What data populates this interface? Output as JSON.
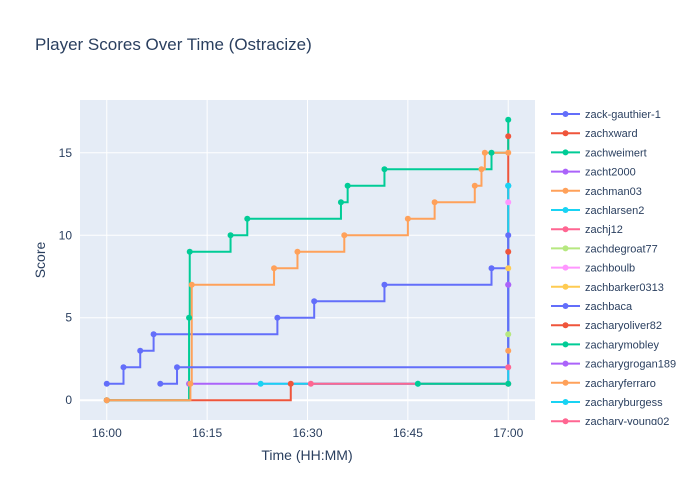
{
  "chart_data": {
    "type": "line",
    "title": "Player Scores Over Time (Ostracize)",
    "xlabel": "Time (HH:MM)",
    "ylabel": "Score",
    "x_tick_labels": [
      "16:00",
      "16:15",
      "16:30",
      "16:45",
      "17:00"
    ],
    "x_tick_minutes": [
      0,
      15,
      30,
      45,
      60
    ],
    "y_ticks": [
      0,
      5,
      10,
      15
    ],
    "xlim_minutes": [
      -4,
      4
    ],
    "ylim": [
      -1.2,
      18.2
    ],
    "line_shape": "step-after",
    "legend_position": "right",
    "grid": true,
    "series": [
      {
        "name": "zack-gauthier-1",
        "color": "#636efa",
        "points": [
          [
            0,
            1
          ],
          [
            2.5,
            2
          ],
          [
            5,
            3
          ],
          [
            7,
            4
          ],
          [
            25.5,
            5
          ],
          [
            31,
            6
          ],
          [
            41.5,
            7
          ],
          [
            57.5,
            8
          ],
          [
            60,
            13
          ]
        ]
      },
      {
        "name": "zachxward",
        "color": "#ef553b",
        "points": [
          [
            0,
            0
          ],
          [
            27.5,
            1
          ],
          [
            60,
            16
          ]
        ]
      },
      {
        "name": "zachweimert",
        "color": "#00cc96",
        "points": [
          [
            0,
            0
          ],
          [
            12.3,
            5
          ],
          [
            12.4,
            9
          ],
          [
            18.5,
            10
          ],
          [
            21,
            11
          ],
          [
            35,
            12
          ],
          [
            36,
            13
          ],
          [
            41.5,
            14
          ],
          [
            57.5,
            15
          ],
          [
            60,
            17
          ]
        ]
      },
      {
        "name": "zacht2000",
        "color": "#ab63fa",
        "points": [
          [
            12.3,
            1
          ],
          [
            60,
            7
          ]
        ]
      },
      {
        "name": "zachman03",
        "color": "#ffa15a",
        "points": [
          [
            0,
            0
          ],
          [
            12.5,
            1
          ],
          [
            12.7,
            7
          ],
          [
            25,
            8
          ],
          [
            28.5,
            9
          ],
          [
            35.5,
            10
          ],
          [
            45,
            11
          ],
          [
            49,
            12
          ],
          [
            55,
            13
          ],
          [
            56,
            14
          ],
          [
            56.5,
            15
          ],
          [
            60,
            15
          ]
        ]
      },
      {
        "name": "zachlarsen2",
        "color": "#19d3f3",
        "points": [
          [
            23,
            1
          ],
          [
            46.5,
            1
          ],
          [
            60,
            13
          ]
        ]
      },
      {
        "name": "zachj12",
        "color": "#ff6692",
        "points": [
          [
            30.5,
            1
          ],
          [
            60,
            1
          ]
        ]
      },
      {
        "name": "zachdegroat77",
        "color": "#b6e880",
        "points": [
          [
            60,
            4
          ]
        ]
      },
      {
        "name": "zachboulb",
        "color": "#ff97ff",
        "points": [
          [
            60,
            12
          ]
        ]
      },
      {
        "name": "zachbarker0313",
        "color": "#fecb52",
        "points": [
          [
            60,
            8
          ]
        ]
      },
      {
        "name": "zachbaca",
        "color": "#636efa",
        "points": [
          [
            8,
            1
          ],
          [
            10.5,
            2
          ],
          [
            60,
            10
          ]
        ]
      },
      {
        "name": "zacharyoliver82",
        "color": "#ef553b",
        "points": [
          [
            60,
            9
          ]
        ]
      },
      {
        "name": "zacharymobley",
        "color": "#00cc96",
        "points": [
          [
            46.5,
            1
          ],
          [
            60,
            1
          ]
        ]
      },
      {
        "name": "zacharygrogan189",
        "color": "#ab63fa",
        "points": [
          [
            60,
            7
          ]
        ]
      },
      {
        "name": "zacharyferraro",
        "color": "#ffa15a",
        "points": [
          [
            60,
            3
          ]
        ]
      },
      {
        "name": "zacharyburgess",
        "color": "#19d3f3",
        "points": [
          [
            60,
            13
          ]
        ]
      },
      {
        "name": "zachary-young02",
        "color": "#ff6692",
        "points": [
          [
            60,
            2
          ]
        ]
      }
    ]
  }
}
